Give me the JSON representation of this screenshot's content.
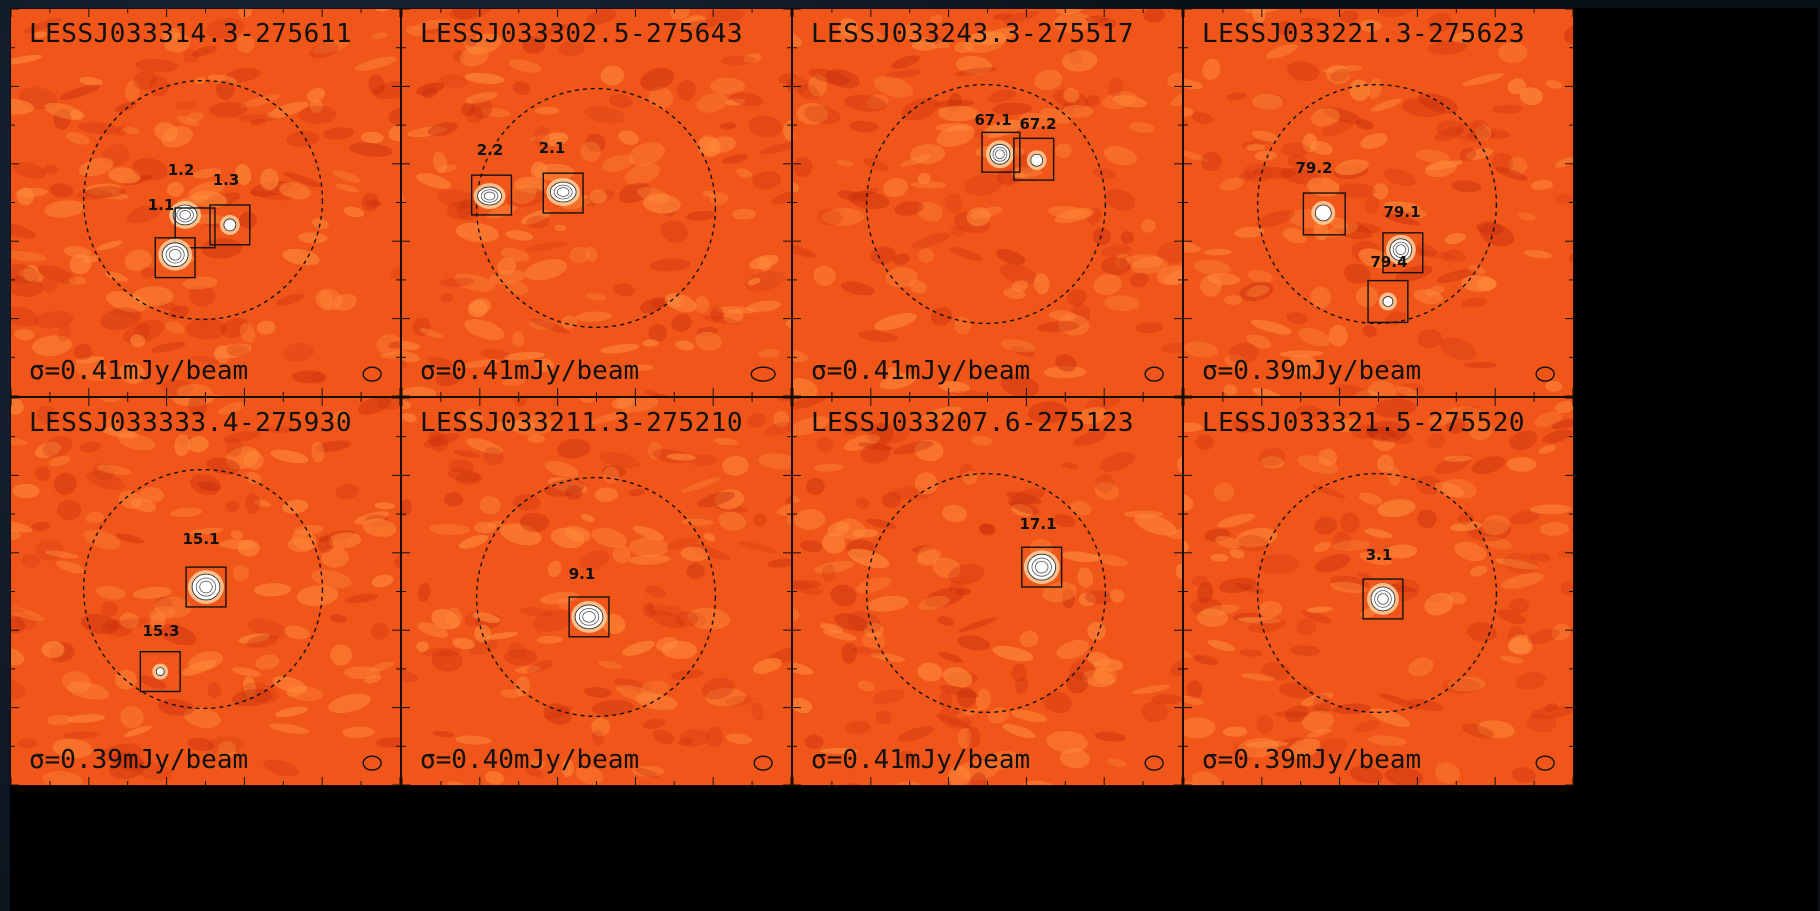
{
  "figure": {
    "panels": [
      {
        "title": "LESSJ033314.3-275611",
        "sigma": "σ=0.41mJy/beam",
        "sources": [
          {
            "label": "1.2"
          },
          {
            "label": "1.3"
          },
          {
            "label": "1.1"
          }
        ]
      },
      {
        "title": "LESSJ033302.5-275643",
        "sigma": "σ=0.41mJy/beam",
        "sources": [
          {
            "label": "2.2"
          },
          {
            "label": "2.1"
          }
        ]
      },
      {
        "title": "LESSJ033243.3-275517",
        "sigma": "σ=0.41mJy/beam",
        "sources": [
          {
            "label": "67.1"
          },
          {
            "label": "67.2"
          }
        ]
      },
      {
        "title": "LESSJ033221.3-275623",
        "sigma": "σ=0.39mJy/beam",
        "sources": [
          {
            "label": "79.2"
          },
          {
            "label": "79.1"
          },
          {
            "label": "79.4"
          }
        ]
      },
      {
        "title": "LESSJ033333.4-275930",
        "sigma": "σ=0.39mJy/beam",
        "sources": [
          {
            "label": "15.1"
          },
          {
            "label": "15.3"
          }
        ]
      },
      {
        "title": "LESSJ033211.3-275210",
        "sigma": "σ=0.40mJy/beam",
        "sources": [
          {
            "label": "9.1"
          }
        ]
      },
      {
        "title": "LESSJ033207.6-275123",
        "sigma": "σ=0.41mJy/beam",
        "sources": [
          {
            "label": "17.1"
          }
        ]
      },
      {
        "title": "LESSJ033321.5-275520",
        "sigma": "σ=0.39mJy/beam",
        "sources": [
          {
            "label": "3.1"
          }
        ]
      }
    ],
    "colors": {
      "background_orange": "#f0551a",
      "light_orange": "#ff8a3a",
      "dark_red": "#c42a0a",
      "source_white": "#ffffff",
      "contour": "#222222"
    }
  }
}
